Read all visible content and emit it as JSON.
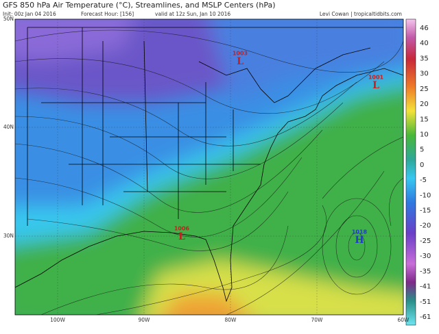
{
  "header": {
    "title": "GFS 850 hPa Air Temperature (°C), Streamlines, and MSLP Centers (hPa)",
    "init": "Init: 00z Jan 04 2016",
    "forecast_hour": "Forecast Hour: [156]",
    "valid": "valid at 12z Sun, Jan 10 2016",
    "credit": "Levi Cowan | tropicaltidbits.com"
  },
  "map": {
    "lat_labels": [
      "50N",
      "40N",
      "30N"
    ],
    "lon_labels": [
      "100W",
      "90W",
      "80W",
      "70W",
      "60W"
    ],
    "centers": [
      {
        "value": "1003",
        "symbol": "L"
      },
      {
        "value": "1001",
        "symbol": "L"
      },
      {
        "value": "1006",
        "symbol": "L"
      },
      {
        "value": "1018",
        "symbol": "H"
      }
    ]
  },
  "colorbar": {
    "labels": [
      46,
      40,
      35,
      30,
      25,
      20,
      15,
      10,
      5,
      0,
      -5,
      -10,
      -15,
      -20,
      -25,
      -30,
      -35,
      -41,
      -51,
      -61
    ]
  }
}
